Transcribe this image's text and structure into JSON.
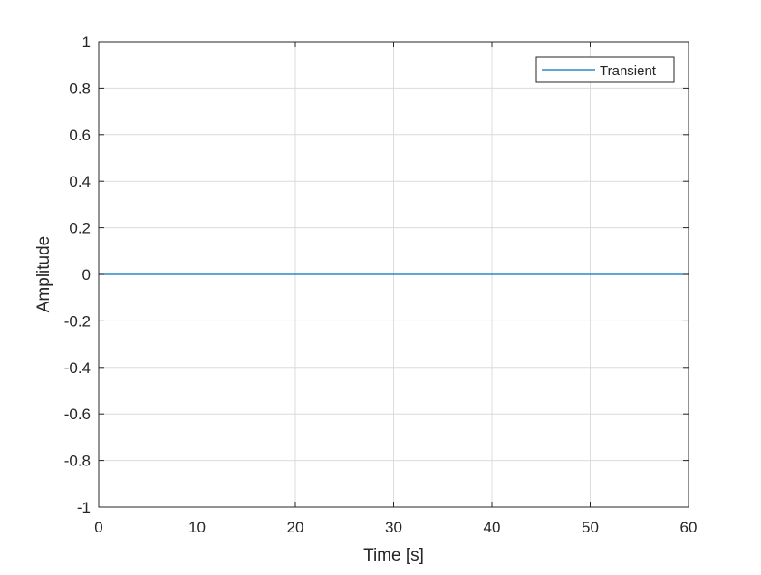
{
  "chart_data": {
    "type": "line",
    "title": "",
    "xlabel": "Time [s]",
    "ylabel": "Amplitude",
    "xlim": [
      0,
      60
    ],
    "ylim": [
      -1,
      1
    ],
    "xticks": [
      0,
      10,
      20,
      30,
      40,
      50,
      60
    ],
    "yticks": [
      -1,
      -0.8,
      -0.6,
      -0.4,
      -0.2,
      0,
      0.2,
      0.4,
      0.6,
      0.8,
      1
    ],
    "grid": true,
    "legend_position": "top-right",
    "series": [
      {
        "name": "Transient",
        "color": "#0072bd",
        "x": [
          0,
          60
        ],
        "y": [
          0,
          0
        ]
      }
    ]
  },
  "colors": {
    "axis": "#262626",
    "grid": "#dcdcdc",
    "background": "#ffffff"
  }
}
